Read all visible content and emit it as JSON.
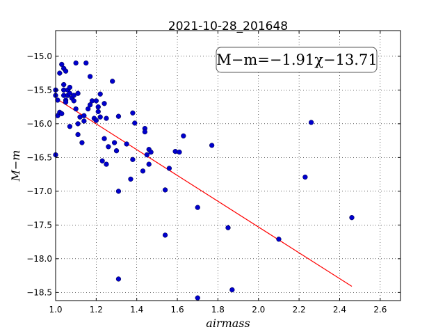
{
  "chart_data": {
    "type": "scatter",
    "title": "2021-10-28_201648",
    "xlabel": "airmass",
    "ylabel": "M−m",
    "annotation": "M−m=−1.91χ−13.71",
    "fit": {
      "slope": -1.91,
      "intercept": -13.71,
      "x_range": [
        1.02,
        2.46
      ],
      "color": "#ff0000"
    },
    "xlim": [
      1.0,
      2.7
    ],
    "ylim": [
      -18.62,
      -14.62
    ],
    "x_ticks": [
      1.0,
      1.2,
      1.4,
      1.6,
      1.8,
      2.0,
      2.2,
      2.4,
      2.6
    ],
    "x_tick_labels": [
      "1.0",
      "1.2",
      "1.4",
      "1.6",
      "1.8",
      "2.0",
      "2.2",
      "2.4",
      "2.6"
    ],
    "y_ticks": [
      -15.0,
      -15.5,
      -16.0,
      -16.5,
      -17.0,
      -17.5,
      -18.0,
      -18.5
    ],
    "y_tick_labels": [
      "−15.0",
      "−15.5",
      "−16.0",
      "−16.5",
      "−17.0",
      "−17.5",
      "−18.0",
      "−18.5"
    ],
    "grid": true,
    "marker_color": "#0000cc",
    "points": [
      [
        1.0,
        -15.5
      ],
      [
        1.0,
        -15.58
      ],
      [
        1.0,
        -16.46
      ],
      [
        1.01,
        -15.65
      ],
      [
        1.01,
        -15.88
      ],
      [
        1.02,
        -15.25
      ],
      [
        1.02,
        -15.83
      ],
      [
        1.03,
        -15.12
      ],
      [
        1.03,
        -15.85
      ],
      [
        1.04,
        -15.18
      ],
      [
        1.04,
        -15.42
      ],
      [
        1.04,
        -15.5
      ],
      [
        1.04,
        -15.58
      ],
      [
        1.05,
        -15.22
      ],
      [
        1.05,
        -15.65
      ],
      [
        1.05,
        -15.68
      ],
      [
        1.06,
        -15.5
      ],
      [
        1.06,
        -15.58
      ],
      [
        1.07,
        -15.46
      ],
      [
        1.07,
        -15.55
      ],
      [
        1.07,
        -16.04
      ],
      [
        1.08,
        -15.62
      ],
      [
        1.09,
        -15.66
      ],
      [
        1.09,
        -15.58
      ],
      [
        1.1,
        -15.1
      ],
      [
        1.1,
        -15.78
      ],
      [
        1.11,
        -15.55
      ],
      [
        1.11,
        -16.0
      ],
      [
        1.11,
        -16.16
      ],
      [
        1.12,
        -15.9
      ],
      [
        1.13,
        -16.28
      ],
      [
        1.14,
        -15.88
      ],
      [
        1.14,
        -15.96
      ],
      [
        1.15,
        -15.1
      ],
      [
        1.16,
        -15.78
      ],
      [
        1.17,
        -15.3
      ],
      [
        1.17,
        -15.72
      ],
      [
        1.18,
        -15.66
      ],
      [
        1.19,
        -15.92
      ],
      [
        1.2,
        -15.66
      ],
      [
        1.2,
        -15.95
      ],
      [
        1.21,
        -15.75
      ],
      [
        1.21,
        -15.82
      ],
      [
        1.22,
        -15.56
      ],
      [
        1.22,
        -15.9
      ],
      [
        1.23,
        -16.55
      ],
      [
        1.24,
        -16.22
      ],
      [
        1.24,
        -15.7
      ],
      [
        1.25,
        -16.6
      ],
      [
        1.25,
        -15.92
      ],
      [
        1.26,
        -16.34
      ],
      [
        1.28,
        -15.37
      ],
      [
        1.29,
        -16.28
      ],
      [
        1.3,
        -16.4
      ],
      [
        1.31,
        -15.89
      ],
      [
        1.31,
        -17.0
      ],
      [
        1.31,
        -18.3
      ],
      [
        1.35,
        -16.3
      ],
      [
        1.37,
        -16.82
      ],
      [
        1.38,
        -15.84
      ],
      [
        1.38,
        -16.53
      ],
      [
        1.39,
        -15.99
      ],
      [
        1.43,
        -16.7
      ],
      [
        1.44,
        -16.07
      ],
      [
        1.44,
        -16.12
      ],
      [
        1.45,
        -16.46
      ],
      [
        1.46,
        -16.38
      ],
      [
        1.46,
        -16.6
      ],
      [
        1.47,
        -16.42
      ],
      [
        1.54,
        -16.98
      ],
      [
        1.54,
        -17.65
      ],
      [
        1.56,
        -16.66
      ],
      [
        1.59,
        -16.41
      ],
      [
        1.61,
        -16.42
      ],
      [
        1.63,
        -16.18
      ],
      [
        1.7,
        -17.24
      ],
      [
        1.7,
        -18.58
      ],
      [
        1.77,
        -16.32
      ],
      [
        1.85,
        -17.54
      ],
      [
        1.87,
        -18.46
      ],
      [
        2.1,
        -17.71
      ],
      [
        2.23,
        -16.79
      ],
      [
        2.26,
        -15.98
      ],
      [
        2.46,
        -17.39
      ]
    ]
  }
}
